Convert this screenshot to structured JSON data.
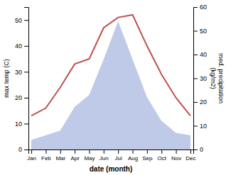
{
  "chart_data": {
    "type": "line",
    "categories": [
      "Jan",
      "Feb",
      "Mar",
      "Apr",
      "May",
      "Jun",
      "Jul",
      "Aug",
      "Sep",
      "Oct",
      "Nov",
      "Dec"
    ],
    "xlabel": "date (month)",
    "ylabel": "max temp (C)",
    "y2label": "med. precipitation\n(kg/m2)",
    "ylim": [
      0,
      55
    ],
    "yticks": [
      0,
      10,
      20,
      30,
      40,
      50
    ],
    "y2lim": [
      0,
      60
    ],
    "y2ticks": [
      0,
      10,
      20,
      30,
      40,
      50,
      60
    ],
    "series": [
      {
        "type": "area",
        "axis": "y2",
        "color": "#bfc9e8",
        "values": [
          4,
          6,
          8,
          18,
          23,
          38,
          54,
          38,
          22,
          12,
          7,
          6
        ]
      },
      {
        "type": "line",
        "color": "#c0504d",
        "values": [
          13,
          16,
          24,
          33,
          35,
          47,
          51,
          52,
          40,
          29,
          20,
          13
        ]
      }
    ]
  }
}
